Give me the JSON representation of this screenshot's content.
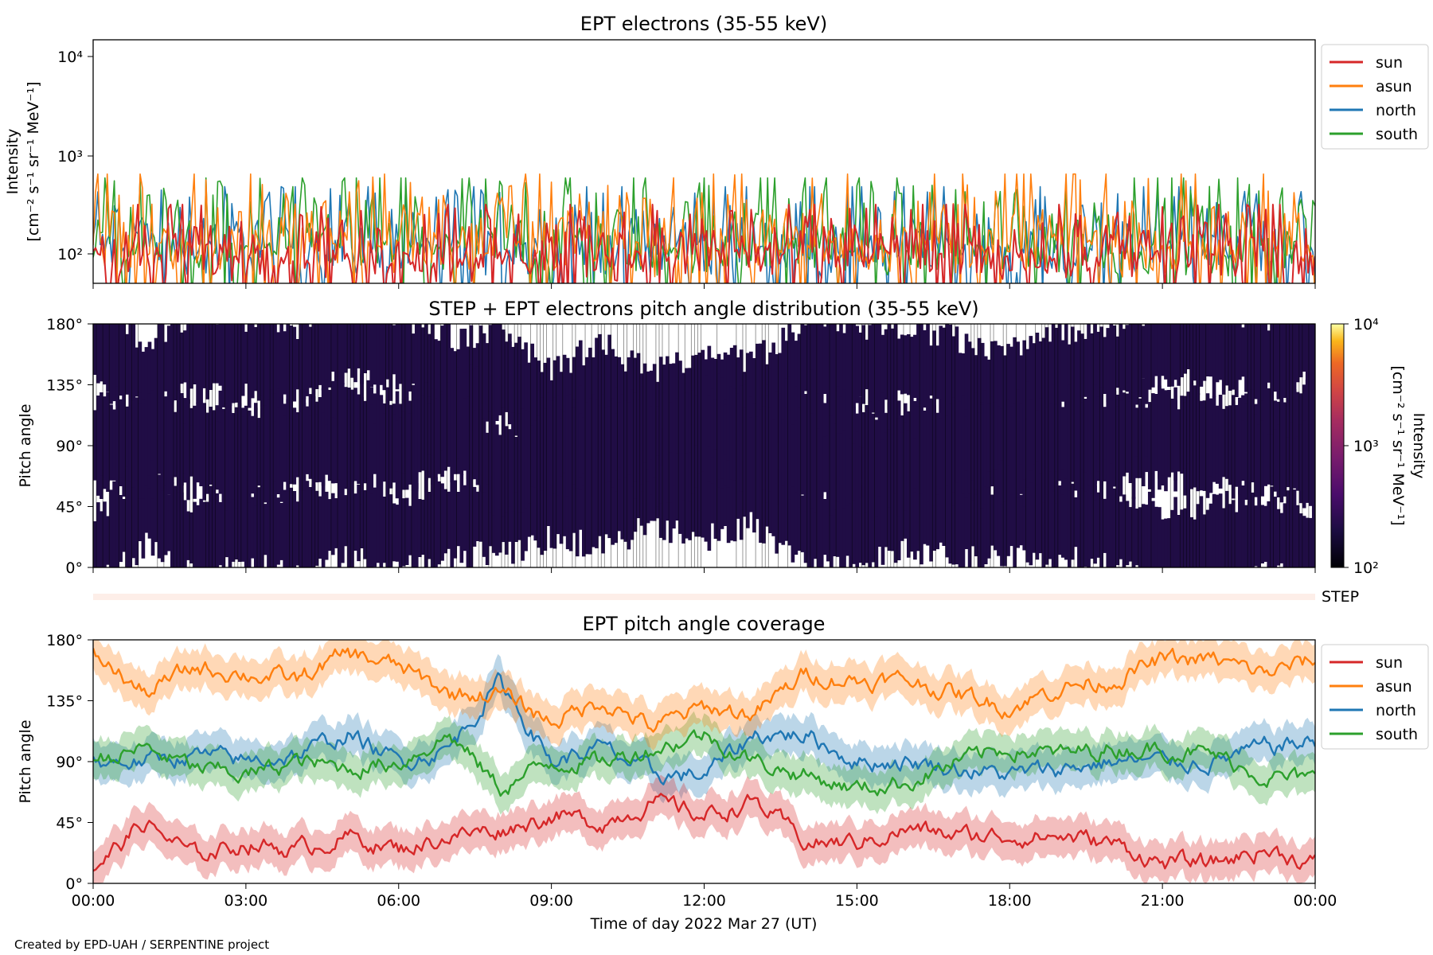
{
  "credit": "Created by EPD-UAH / SERPENTINE project",
  "x_axis": {
    "label": "Time of day 2022 Mar 27 (UT)",
    "ticks": [
      "00:00",
      "03:00",
      "06:00",
      "09:00",
      "12:00",
      "15:00",
      "18:00",
      "21:00",
      "00:00"
    ]
  },
  "colors": {
    "sun": "#d62728",
    "asun": "#ff7f0e",
    "north": "#1f77b4",
    "south": "#2ca02c",
    "step_strip": "#fdeee8",
    "pad_background": "#200d45"
  },
  "chart_data": [
    {
      "type": "line",
      "title": "EPT electrons (35-55 keV)",
      "ylabel": "Intensity",
      "ylabel_unit": "[cm⁻² s⁻¹ sr⁻¹ MeV⁻¹]",
      "yscale": "log",
      "ylim": [
        55,
        14000
      ],
      "yticks": [
        "10⁴",
        "10³",
        "10²"
      ],
      "xlim_hours": [
        0,
        24
      ],
      "legend": [
        "sun",
        "asun",
        "north",
        "south"
      ],
      "legend_position": "outside-right",
      "series": [
        {
          "name": "sun",
          "typical_range": [
            55,
            300
          ]
        },
        {
          "name": "asun",
          "typical_range": [
            60,
            600
          ]
        },
        {
          "name": "north",
          "typical_range": [
            60,
            450
          ]
        },
        {
          "name": "south",
          "typical_range": [
            60,
            550
          ]
        }
      ]
    },
    {
      "type": "heatmap",
      "title": "STEP + EPT electrons pitch angle distribution (35-55 keV)",
      "ylabel": "Pitch angle",
      "ylim": [
        0,
        180
      ],
      "yticks": [
        "180°",
        "135°",
        "90°",
        "45°",
        "0°"
      ],
      "colorbar": {
        "label": "Intensity",
        "unit": "[cm⁻² s⁻¹ sr⁻¹ MeV⁻¹]",
        "scale": "log",
        "range": [
          100,
          10000
        ],
        "ticks": [
          "10⁴",
          "10³",
          "10²"
        ]
      }
    },
    {
      "type": "line",
      "title": "",
      "strip_label": "STEP",
      "note": "empty STEP coverage strip"
    },
    {
      "type": "line",
      "title": "EPT pitch angle coverage",
      "ylabel": "Pitch angle",
      "ylim": [
        0,
        180
      ],
      "yticks": [
        "180°",
        "135°",
        "90°",
        "45°",
        "0°"
      ],
      "xlim_hours": [
        0,
        24
      ],
      "legend": [
        "sun",
        "asun",
        "north",
        "south"
      ],
      "legend_position": "outside-right",
      "series": [
        {
          "name": "sun",
          "hours": [
            0,
            1,
            2,
            3,
            4,
            5,
            6,
            7,
            8,
            9,
            10,
            11,
            12,
            13,
            14,
            15,
            16,
            17,
            18,
            19,
            20,
            21,
            22,
            23,
            24
          ],
          "values": [
            10,
            45,
            20,
            30,
            25,
            35,
            25,
            35,
            40,
            50,
            45,
            60,
            50,
            60,
            30,
            30,
            40,
            35,
            35,
            35,
            30,
            15,
            15,
            25,
            15
          ]
        },
        {
          "name": "asun",
          "hours": [
            0,
            1,
            2,
            3,
            4,
            5,
            6,
            7,
            8,
            9,
            10,
            11,
            12,
            13,
            14,
            15,
            16,
            17,
            18,
            19,
            20,
            21,
            22,
            23,
            24
          ],
          "values": [
            170,
            140,
            160,
            155,
            150,
            170,
            160,
            140,
            140,
            120,
            135,
            115,
            130,
            125,
            155,
            150,
            150,
            140,
            130,
            145,
            150,
            165,
            165,
            155,
            165
          ]
        },
        {
          "name": "north",
          "hours": [
            0,
            1,
            2,
            3,
            4,
            5,
            6,
            7,
            8,
            9,
            10,
            11,
            12,
            13,
            14,
            15,
            16,
            17,
            18,
            19,
            20,
            21,
            22,
            23,
            24
          ],
          "values": [
            90,
            90,
            95,
            90,
            95,
            110,
            90,
            100,
            150,
            90,
            100,
            80,
            80,
            110,
            110,
            90,
            90,
            85,
            80,
            85,
            90,
            90,
            90,
            100,
            105
          ]
        },
        {
          "name": "south",
          "hours": [
            0,
            1,
            2,
            3,
            4,
            5,
            6,
            7,
            8,
            9,
            10,
            11,
            12,
            13,
            14,
            15,
            16,
            17,
            18,
            19,
            20,
            21,
            22,
            23,
            24
          ],
          "values": [
            90,
            100,
            85,
            80,
            90,
            85,
            90,
            110,
            70,
            90,
            90,
            100,
            110,
            90,
            80,
            70,
            75,
            90,
            100,
            95,
            100,
            100,
            95,
            80,
            75
          ]
        }
      ]
    }
  ]
}
